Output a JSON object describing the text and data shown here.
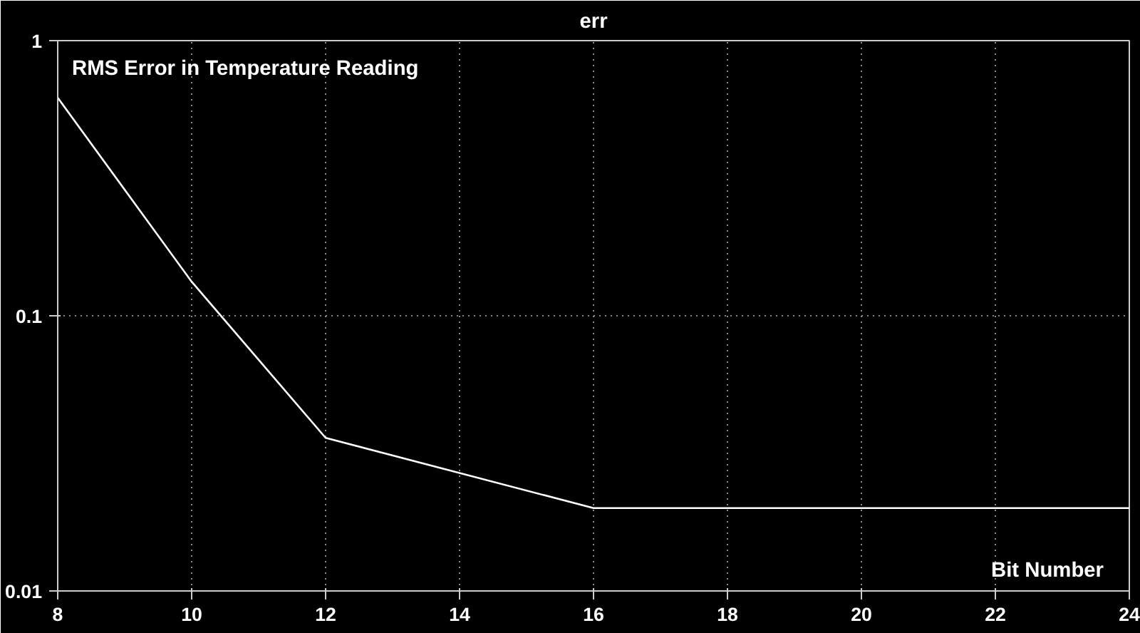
{
  "chart_data": {
    "type": "line",
    "title": "err",
    "xlabel": "Bit Number",
    "annotations": [
      "RMS Error in Temperature Reading"
    ],
    "x": [
      8,
      10,
      12,
      16,
      24
    ],
    "series": [
      {
        "color": "#ffffff",
        "values": [
          0.62,
          0.133,
          0.036,
          0.02,
          0.02
        ]
      }
    ],
    "xlim": [
      8,
      24
    ],
    "xticks": [
      8,
      10,
      12,
      14,
      16,
      18,
      20,
      22,
      24
    ],
    "ylim": [
      0.01,
      1
    ],
    "yticks": [
      0.01,
      0.1,
      1
    ],
    "log": "y",
    "grid": true,
    "marker": "none",
    "line_style": "solid"
  }
}
